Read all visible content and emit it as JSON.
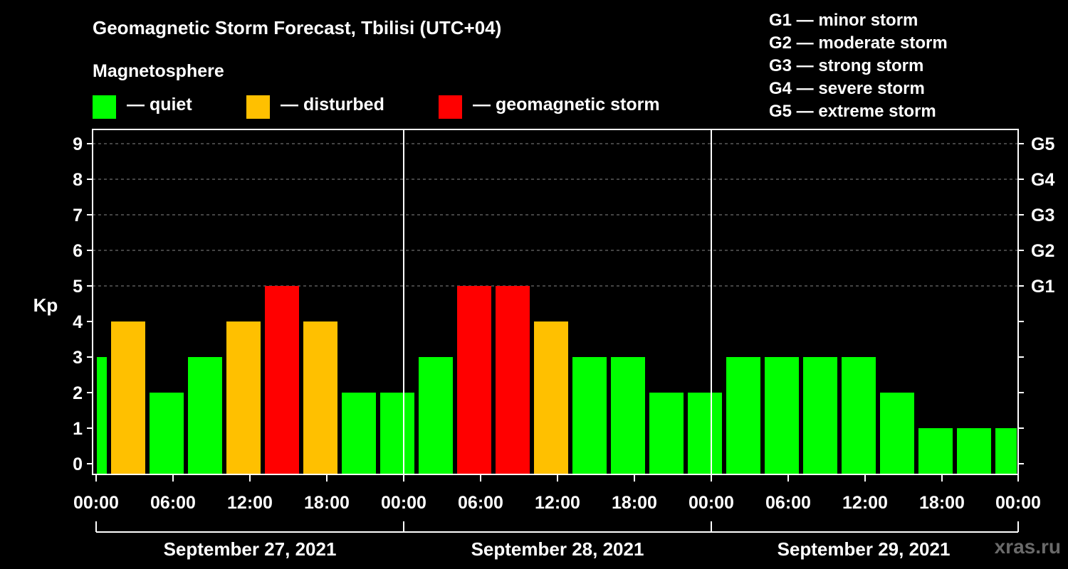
{
  "chart_data": {
    "type": "bar",
    "title": "Geomagnetic Storm Forecast, Tbilisi (UTC+04)",
    "ylabel": "Kp",
    "ylim": [
      0,
      9
    ],
    "yticks": [
      "0",
      "1",
      "2",
      "3",
      "4",
      "5",
      "6",
      "7",
      "8",
      "9"
    ],
    "right_axis": [
      {
        "kp": 5,
        "label": "G1"
      },
      {
        "kp": 6,
        "label": "G2"
      },
      {
        "kp": 7,
        "label": "G3"
      },
      {
        "kp": 8,
        "label": "G4"
      },
      {
        "kp": 9,
        "label": "G5"
      }
    ],
    "x_tick_labels": [
      "00:00",
      "06:00",
      "12:00",
      "18:00",
      "00:00",
      "06:00",
      "12:00",
      "18:00",
      "00:00",
      "06:00",
      "12:00",
      "18:00",
      "00:00"
    ],
    "days": [
      "September 27, 2021",
      "September 28, 2021",
      "September 29, 2021"
    ],
    "interval_hours": 3,
    "series": [
      {
        "name": "Kp",
        "values": [
          3,
          4,
          2,
          3,
          4,
          5,
          4,
          2,
          2,
          3,
          5,
          5,
          4,
          3,
          3,
          2,
          2,
          3,
          3,
          3,
          3,
          2,
          1,
          1,
          1
        ]
      }
    ],
    "levels": {
      "quiet": {
        "max": 3,
        "color": "#00ff00"
      },
      "disturbed": {
        "max": 4,
        "color": "#ffc000"
      },
      "storm": {
        "min": 5,
        "color": "#ff0000"
      }
    }
  },
  "legend": {
    "magnetosphere_title": "Magnetosphere",
    "items": [
      {
        "label": "— quiet",
        "color": "#00ff00"
      },
      {
        "label": "— disturbed",
        "color": "#ffc000"
      },
      {
        "label": "— geomagnetic storm",
        "color": "#ff0000"
      }
    ],
    "g_scale": [
      "G1 — minor storm",
      "G2 — moderate storm",
      "G3 — strong storm",
      "G4 — severe storm",
      "G5 — extreme storm"
    ]
  },
  "watermark": "xras.ru"
}
